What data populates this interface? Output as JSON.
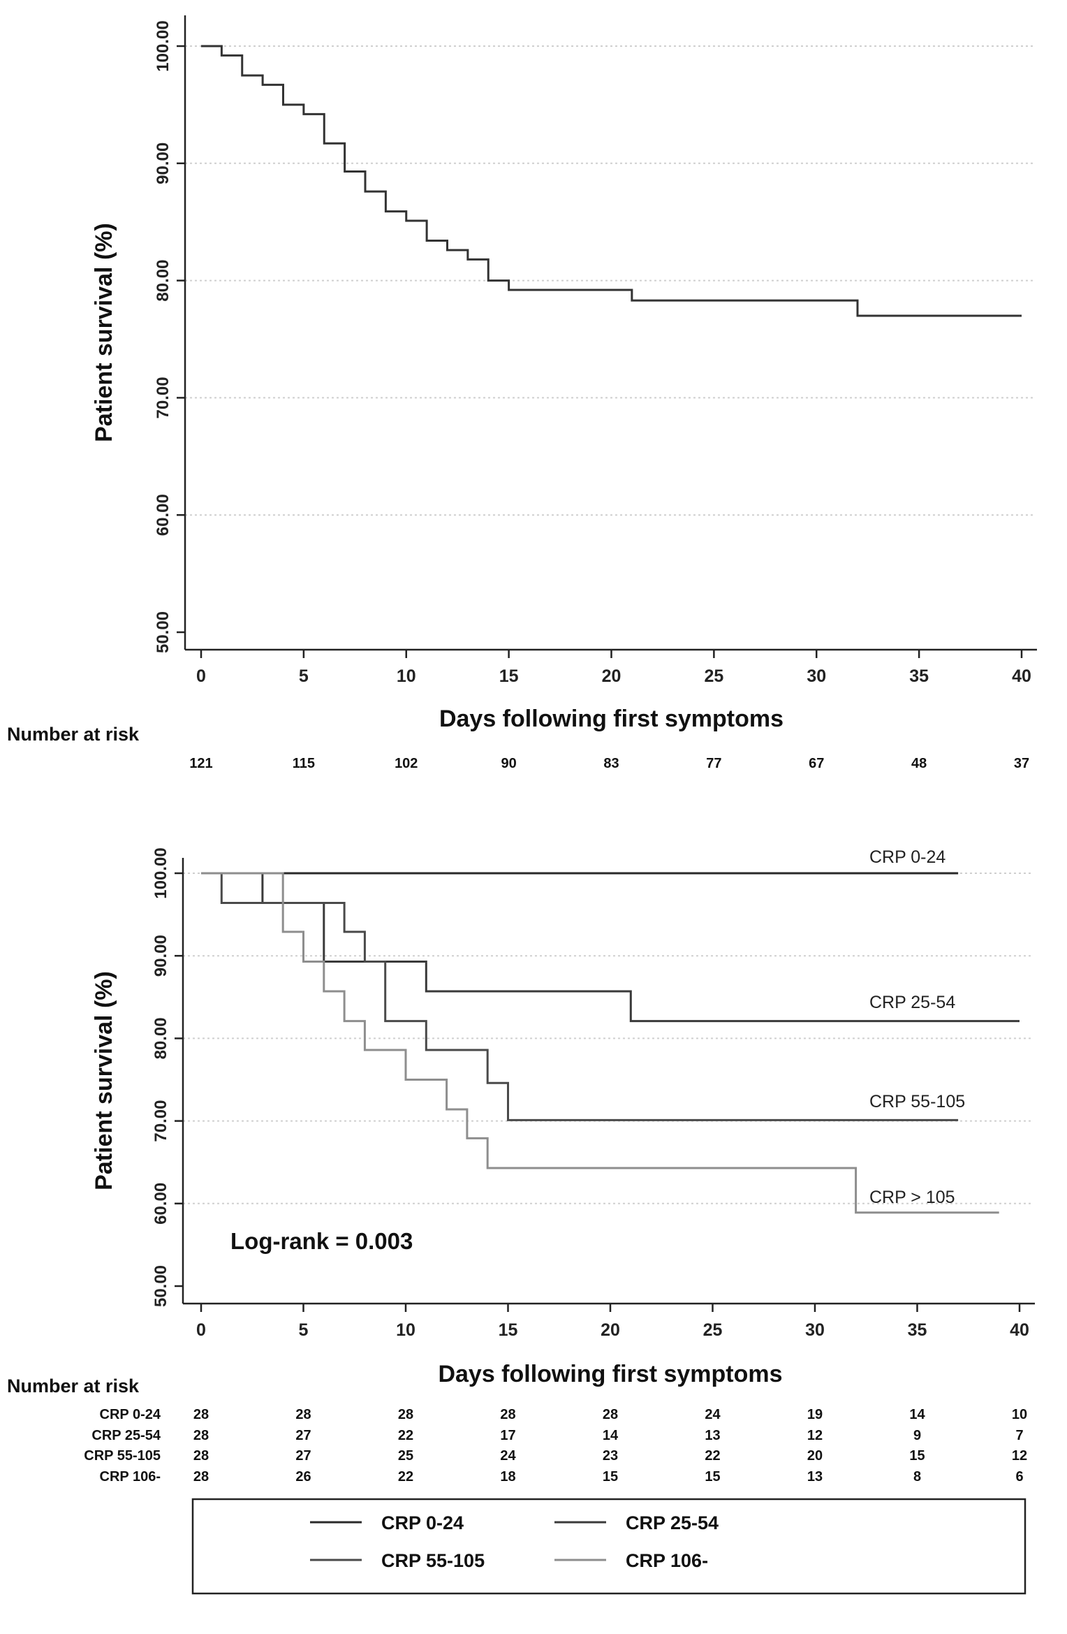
{
  "chart_data": [
    {
      "type": "line",
      "title": "",
      "xlabel": "Days following first symptoms",
      "ylabel": "Patient survival (%)",
      "xlim": [
        0,
        40
      ],
      "ylim": [
        50,
        100
      ],
      "xticks": [
        "0",
        "5",
        "10",
        "15",
        "20",
        "25",
        "30",
        "35",
        "40"
      ],
      "yticks": [
        "50.00",
        "60.00",
        "70.00",
        "80.00",
        "90.00",
        "100.00"
      ],
      "grid": "horizontal dotted",
      "series": [
        {
          "color": "#333333",
          "steps": [
            [
              0,
              100
            ],
            [
              1,
              99.2
            ],
            [
              2,
              97.5
            ],
            [
              3,
              96.7
            ],
            [
              4,
              95.0
            ],
            [
              5,
              94.2
            ],
            [
              6,
              91.7
            ],
            [
              7,
              89.3
            ],
            [
              8,
              87.6
            ],
            [
              9,
              85.9
            ],
            [
              10,
              85.1
            ],
            [
              11,
              83.4
            ],
            [
              12,
              82.6
            ],
            [
              13,
              81.8
            ],
            [
              14,
              80.0
            ],
            [
              15,
              79.2
            ],
            [
              21,
              78.3
            ],
            [
              32,
              77.0
            ],
            [
              40,
              77.0
            ]
          ]
        }
      ],
      "risk_table": {
        "heading": "Number at risk",
        "times": [
          0,
          5,
          10,
          15,
          20,
          25,
          30,
          35,
          40
        ],
        "rows": [
          {
            "label": "",
            "values": [
              "121",
              "115",
              "102",
              "90",
              "83",
              "77",
              "67",
              "48",
              "37"
            ]
          }
        ]
      }
    },
    {
      "type": "line",
      "title": "",
      "xlabel": "Days following first symptoms",
      "ylabel": "Patient survival (%)",
      "xlim": [
        0,
        40
      ],
      "ylim": [
        50,
        100
      ],
      "xticks": [
        "0",
        "5",
        "10",
        "15",
        "20",
        "25",
        "30",
        "35",
        "40"
      ],
      "yticks": [
        "50.00",
        "60.00",
        "70.00",
        "80.00",
        "90.00",
        "100.00"
      ],
      "grid": "horizontal dotted",
      "annotation": "Log-rank = 0.003",
      "series": [
        {
          "name": "CRP 0-24",
          "end_label": "CRP 0-24",
          "color": "#2a2a2a",
          "steps": [
            [
              0,
              100
            ],
            [
              37,
              100
            ]
          ]
        },
        {
          "name": "CRP 25-54",
          "end_label": "CRP 25-54",
          "color": "#3a3a3a",
          "steps": [
            [
              0,
              100
            ],
            [
              3,
              96.4
            ],
            [
              6,
              89.3
            ],
            [
              11,
              85.7
            ],
            [
              21,
              82.1
            ],
            [
              40,
              82.1
            ]
          ]
        },
        {
          "name": "CRP 55-105",
          "end_label": "CRP 55-105",
          "color": "#4a4a4a",
          "steps": [
            [
              0,
              100
            ],
            [
              1,
              96.4
            ],
            [
              7,
              92.9
            ],
            [
              8,
              89.3
            ],
            [
              9,
              82.1
            ],
            [
              11,
              78.6
            ],
            [
              14,
              74.6
            ],
            [
              15,
              70.1
            ],
            [
              37,
              70.1
            ]
          ]
        },
        {
          "name": "CRP 106-",
          "end_label": "CRP > 105",
          "color": "#8e8e8e",
          "steps": [
            [
              0,
              100
            ],
            [
              4,
              92.9
            ],
            [
              5,
              89.3
            ],
            [
              6,
              85.7
            ],
            [
              7,
              82.1
            ],
            [
              8,
              78.6
            ],
            [
              10,
              75.0
            ],
            [
              12,
              71.4
            ],
            [
              13,
              67.9
            ],
            [
              14,
              64.3
            ],
            [
              32,
              58.9
            ],
            [
              39,
              58.9
            ]
          ]
        }
      ],
      "risk_table": {
        "heading": "Number at risk",
        "times": [
          0,
          5,
          10,
          15,
          20,
          25,
          30,
          35,
          40
        ],
        "rows": [
          {
            "label": "CRP 0-24",
            "values": [
              "28",
              "28",
              "28",
              "28",
              "28",
              "24",
              "19",
              "14",
              "10"
            ]
          },
          {
            "label": "CRP 25-54",
            "values": [
              "28",
              "27",
              "22",
              "17",
              "14",
              "13",
              "12",
              "9",
              "7"
            ]
          },
          {
            "label": "CRP 55-105",
            "values": [
              "28",
              "27",
              "25",
              "24",
              "23",
              "22",
              "20",
              "15",
              "12"
            ]
          },
          {
            "label": "CRP 106-",
            "values": [
              "28",
              "26",
              "22",
              "18",
              "15",
              "15",
              "13",
              "8",
              "6"
            ]
          }
        ]
      },
      "legend": {
        "placement": "bottom",
        "entries": [
          "CRP 0-24",
          "CRP 25-54",
          "CRP 55-105",
          "CRP 106-"
        ]
      }
    }
  ]
}
